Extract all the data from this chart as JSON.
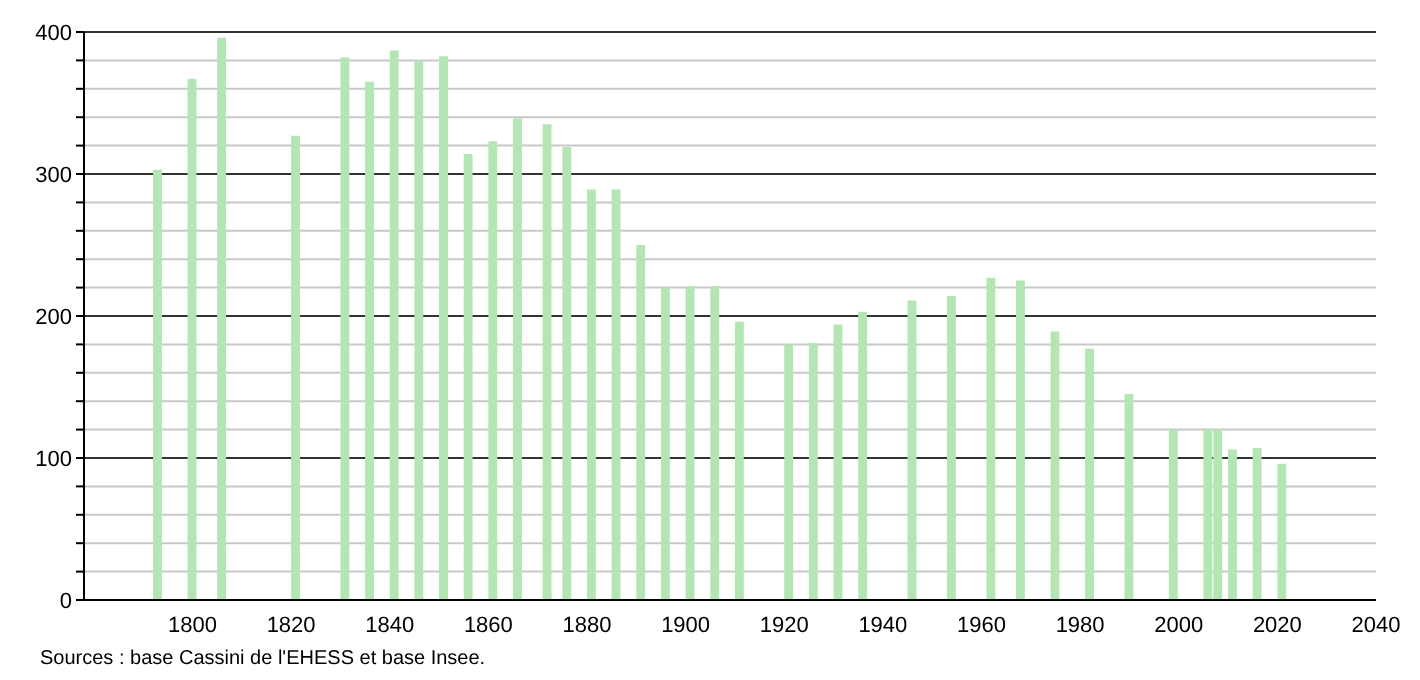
{
  "chart_data": {
    "type": "bar",
    "x": [
      1793,
      1800,
      1806,
      1821,
      1831,
      1836,
      1841,
      1846,
      1851,
      1856,
      1861,
      1866,
      1872,
      1876,
      1881,
      1886,
      1891,
      1896,
      1901,
      1906,
      1911,
      1921,
      1926,
      1931,
      1936,
      1946,
      1954,
      1962,
      1968,
      1975,
      1982,
      1990,
      1999,
      2006,
      2008,
      2011,
      2016,
      2021
    ],
    "values": [
      303,
      367,
      396,
      327,
      382,
      365,
      387,
      380,
      383,
      314,
      323,
      339,
      335,
      319,
      289,
      289,
      250,
      220,
      221,
      221,
      196,
      180,
      181,
      194,
      203,
      211,
      214,
      227,
      225,
      189,
      177,
      145,
      120,
      120,
      120,
      106,
      107,
      96
    ],
    "color": "#b3e6b3",
    "xlim": [
      1778,
      2040
    ],
    "xticks": [
      1800,
      1820,
      1840,
      1860,
      1880,
      1900,
      1920,
      1940,
      1960,
      1980,
      2000,
      2020,
      2040
    ],
    "ylim": [
      0,
      400
    ],
    "yticks": [
      0,
      {
        "value": 20,
        "label": null
      },
      {
        "value": 40,
        "label": null
      },
      {
        "value": 60,
        "label": null
      },
      {
        "value": 80,
        "label": null
      },
      100,
      {
        "value": 120,
        "label": null
      },
      {
        "value": 140,
        "label": null
      },
      {
        "value": 160,
        "label": null
      },
      {
        "value": 180,
        "label": null
      },
      200,
      {
        "value": 220,
        "label": null
      },
      {
        "value": 240,
        "label": null
      },
      {
        "value": 260,
        "label": null
      },
      {
        "value": 280,
        "label": null
      },
      300,
      {
        "value": 320,
        "label": null
      },
      {
        "value": 340,
        "label": null
      },
      {
        "value": 360,
        "label": null
      },
      {
        "value": 380,
        "label": null
      },
      400
    ],
    "grid": "y",
    "annotations": [
      "Sources : base Cassini de l'EHESS et base Insee."
    ]
  }
}
